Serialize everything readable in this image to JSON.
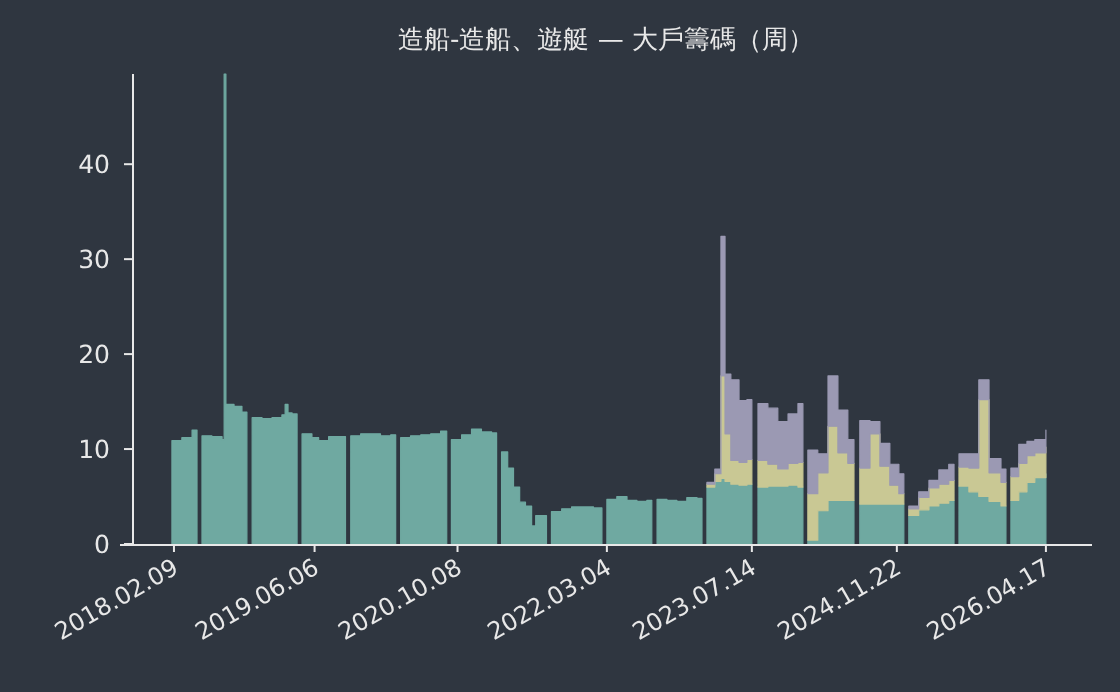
{
  "chart_data": {
    "type": "area",
    "stacked": true,
    "title": "造船-造船、遊艇 — 大戶籌碼（周）",
    "x": [
      "2018-02-02",
      "2018-03-08",
      "2018-04-12",
      "2018-04-29",
      "2018-05-16",
      "2018-06-19",
      "2018-07-24",
      "2018-07-31",
      "2018-08-06",
      "2018-09-03",
      "2018-09-30",
      "2018-10-17",
      "2018-11-04",
      "2018-12-08",
      "2019-01-11",
      "2019-02-14",
      "2019-02-25",
      "2019-03-07",
      "2019-03-21",
      "2019-04-07",
      "2019-04-24",
      "2019-05-28",
      "2019-06-20",
      "2019-07-24",
      "2019-09-03",
      "2019-09-20",
      "2019-10-08",
      "2019-11-11",
      "2019-12-15",
      "2020-01-18",
      "2020-02-22",
      "2020-03-10",
      "2020-03-27",
      "2020-04-30",
      "2020-06-04",
      "2020-07-08",
      "2020-08-11",
      "2020-09-01",
      "2020-09-17",
      "2020-10-22",
      "2020-11-25",
      "2020-12-29",
      "2021-02-02",
      "2021-02-19",
      "2021-03-08",
      "2021-03-29",
      "2021-04-18",
      "2021-05-09",
      "2021-05-29",
      "2021-06-19",
      "2021-07-03",
      "2021-07-23",
      "2021-08-09",
      "2021-08-26",
      "2021-09-30",
      "2021-11-03",
      "2021-12-07",
      "2022-01-17",
      "2022-02-15",
      "2022-03-04",
      "2022-04-07",
      "2022-05-12",
      "2022-06-15",
      "2022-07-19",
      "2022-08-05",
      "2022-08-23",
      "2022-09-26",
      "2022-10-30",
      "2022-12-03",
      "2023-01-07",
      "2023-01-24",
      "2023-02-10",
      "2023-03-09",
      "2023-03-30",
      "2023-04-13",
      "2023-05-03",
      "2023-05-31",
      "2023-06-27",
      "2023-07-14",
      "2023-08-04",
      "2023-09-07",
      "2023-10-11",
      "2023-11-15",
      "2023-12-19",
      "2024-01-05",
      "2024-01-22",
      "2024-02-25",
      "2024-03-31",
      "2024-05-04",
      "2024-06-07",
      "2024-06-28",
      "2024-07-18",
      "2024-08-22",
      "2024-09-25",
      "2024-10-29",
      "2024-11-29",
      "2024-12-16",
      "2025-01-02",
      "2025-02-05",
      "2025-03-12",
      "2025-04-15",
      "2025-05-19",
      "2025-06-06",
      "2025-06-23",
      "2025-07-27",
      "2025-08-30",
      "2025-10-04",
      "2025-11-14",
      "2025-12-01",
      "2025-12-18",
      "2026-01-14",
      "2026-02-11",
      "2026-03-10",
      "2026-04-17"
    ],
    "series": [
      {
        "color": "#6fa9a1",
        "values": [
          10.9,
          11.2,
          12.0,
          null,
          11.4,
          11.3,
          11.0,
          49.5,
          14.7,
          14.5,
          13.9,
          null,
          13.3,
          13.2,
          13.3,
          13.6,
          14.7,
          13.8,
          13.7,
          null,
          11.6,
          11.2,
          10.9,
          11.3,
          11.3,
          null,
          11.4,
          11.6,
          11.6,
          11.4,
          11.5,
          null,
          11.2,
          11.4,
          11.5,
          11.6,
          11.9,
          null,
          11.0,
          11.5,
          12.1,
          11.8,
          11.7,
          null,
          9.7,
          8.0,
          6.0,
          4.4,
          4.0,
          1.9,
          3.0,
          3.0,
          null,
          3.4,
          3.7,
          3.9,
          3.9,
          3.8,
          null,
          4.7,
          5.0,
          4.6,
          4.5,
          4.6,
          null,
          4.7,
          4.6,
          4.5,
          4.9,
          4.8,
          null,
          6.0,
          6.6,
          6.9,
          6.6,
          6.3,
          6.2,
          6.3,
          null,
          6.0,
          6.1,
          6.1,
          6.2,
          6.0,
          null,
          0.4,
          3.5,
          4.6,
          4.6,
          4.6,
          null,
          4.2,
          4.2,
          4.2,
          4.2,
          4.2,
          null,
          3.0,
          3.6,
          4.0,
          4.3,
          4.6,
          null,
          6.1,
          5.5,
          5.0,
          4.5,
          4.0,
          null,
          4.6,
          5.5,
          6.5,
          7.0,
          7.4
        ]
      },
      {
        "color": "#c9c894",
        "values": [
          null,
          null,
          null,
          null,
          null,
          null,
          null,
          null,
          null,
          null,
          null,
          null,
          null,
          null,
          null,
          null,
          null,
          null,
          null,
          null,
          null,
          null,
          null,
          null,
          null,
          null,
          null,
          null,
          null,
          null,
          null,
          null,
          null,
          null,
          null,
          null,
          null,
          null,
          null,
          null,
          null,
          null,
          null,
          null,
          null,
          null,
          null,
          null,
          null,
          null,
          null,
          null,
          null,
          null,
          null,
          null,
          null,
          null,
          null,
          null,
          null,
          null,
          null,
          null,
          null,
          null,
          null,
          null,
          null,
          null,
          null,
          0.3,
          0.8,
          10.8,
          5.0,
          2.5,
          2.4,
          2.6,
          null,
          2.8,
          2.3,
          1.8,
          2.3,
          2.6,
          null,
          4.9,
          4.0,
          7.8,
          5.0,
          3.9,
          null,
          3.8,
          7.4,
          4.0,
          2.0,
          1.1,
          null,
          0.7,
          1.3,
          1.9,
          2.0,
          2.1,
          null,
          2.0,
          2.5,
          10.2,
          3.0,
          2.5,
          null,
          2.5,
          3.0,
          2.8,
          2.6,
          2.8
        ]
      },
      {
        "color": "#9b99b3",
        "values": [
          null,
          null,
          null,
          null,
          null,
          null,
          null,
          null,
          null,
          null,
          null,
          null,
          null,
          null,
          null,
          null,
          null,
          null,
          null,
          null,
          null,
          null,
          null,
          null,
          null,
          null,
          null,
          null,
          null,
          null,
          null,
          null,
          null,
          null,
          null,
          null,
          null,
          null,
          null,
          null,
          null,
          null,
          null,
          null,
          null,
          null,
          null,
          null,
          null,
          null,
          null,
          null,
          null,
          null,
          null,
          null,
          null,
          null,
          null,
          null,
          null,
          null,
          null,
          null,
          null,
          null,
          null,
          null,
          null,
          null,
          null,
          0.2,
          0.5,
          14.7,
          6.3,
          8.5,
          6.5,
          6.3,
          null,
          6.0,
          5.9,
          5.0,
          5.2,
          6.2,
          null,
          4.6,
          2.0,
          5.3,
          4.5,
          2.5,
          null,
          5.0,
          1.3,
          2.4,
          2.2,
          2.1,
          null,
          0.3,
          0.6,
          0.8,
          1.5,
          1.7,
          null,
          1.4,
          1.5,
          2.1,
          1.5,
          1.4,
          null,
          0.9,
          2.0,
          1.5,
          1.4,
          1.8
        ]
      }
    ],
    "xlim": [
      "2017-08-08",
      "2026-09-22"
    ],
    "xticks": [
      {
        "value": "2018-02-09",
        "label": "2018.02.09"
      },
      {
        "value": "2019-06-06",
        "label": "2019.06.06"
      },
      {
        "value": "2020-10-08",
        "label": "2020.10.08"
      },
      {
        "value": "2022-03-04",
        "label": "2022.03.04"
      },
      {
        "value": "2023-07-14",
        "label": "2023.07.14"
      },
      {
        "value": "2024-11-22",
        "label": "2024.11.22"
      },
      {
        "value": "2026-04-17",
        "label": "2026.04.17"
      }
    ],
    "ylim": [
      0,
      49.5
    ],
    "yticks": [
      0,
      10,
      20,
      30,
      40
    ]
  }
}
